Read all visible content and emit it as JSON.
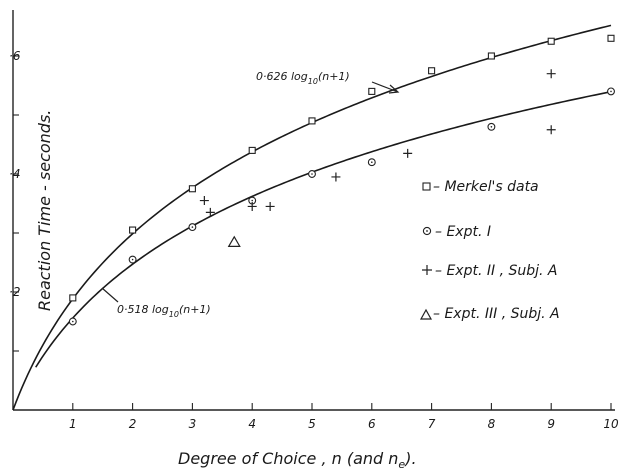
{
  "chart_data": {
    "type": "scatter",
    "title": "",
    "xlabel": "Degree of Choice ,  n    (and n",
    "xlabel_sub": "e",
    "xlabel_end": ").",
    "ylabel": "Reaction Time - seconds.",
    "xlim": [
      0,
      10
    ],
    "ylim": [
      0,
      0.7
    ],
    "x_ticks": [
      1,
      2,
      3,
      4,
      5,
      6,
      7,
      8,
      9,
      10
    ],
    "x_tick_labels": [
      "1",
      "2",
      "3",
      "4",
      "5",
      "6",
      "7",
      "8",
      "9",
      "10"
    ],
    "y_ticks": [
      0.1,
      0.2,
      0.3,
      0.4,
      0.5,
      0.6
    ],
    "y_tick_labels": [
      "",
      "·2",
      "",
      "·4",
      "",
      "·6"
    ],
    "grid": false,
    "legend_position": "right",
    "curves": [
      {
        "name": "0.626 log10(n+1)",
        "label_text": "0·626 log",
        "label_sub": "10",
        "label_end": "(n+1)",
        "coefficient": 0.626
      },
      {
        "name": "0.518 log10(n+1)",
        "label_text": "0·518 log",
        "label_sub": "10",
        "label_end": "(n+1)",
        "coefficient": 0.518
      }
    ],
    "series": [
      {
        "name": "Merkel's data",
        "legend_label": "– Merkel's data",
        "marker": "square",
        "points": [
          [
            1,
            0.19
          ],
          [
            2,
            0.305
          ],
          [
            3,
            0.375
          ],
          [
            4,
            0.44
          ],
          [
            5,
            0.49
          ],
          [
            6,
            0.54
          ],
          [
            7,
            0.575
          ],
          [
            8,
            0.6
          ],
          [
            9,
            0.625
          ],
          [
            10,
            0.63
          ]
        ]
      },
      {
        "name": "Expt. I",
        "legend_label": "–  Expt. I",
        "marker": "circle",
        "points": [
          [
            1,
            0.15
          ],
          [
            2,
            0.255
          ],
          [
            3,
            0.31
          ],
          [
            4,
            0.355
          ],
          [
            5,
            0.4
          ],
          [
            6,
            0.42
          ],
          [
            8,
            0.48
          ],
          [
            10,
            0.54
          ]
        ]
      },
      {
        "name": "Expt. II, Subj. A",
        "legend_label": "–  Expt. II ,  Subj. A",
        "marker": "plus",
        "points": [
          [
            3.2,
            0.355
          ],
          [
            3.3,
            0.335
          ],
          [
            4,
            0.345
          ],
          [
            4.3,
            0.345
          ],
          [
            5.4,
            0.395
          ],
          [
            6.6,
            0.435
          ],
          [
            9,
            0.57
          ],
          [
            9,
            0.475
          ]
        ]
      },
      {
        "name": "Expt. III, Subj. A",
        "legend_label": "– Expt. III , Subj. A",
        "marker": "triangle",
        "points": [
          [
            3.7,
            0.285
          ]
        ]
      }
    ]
  }
}
